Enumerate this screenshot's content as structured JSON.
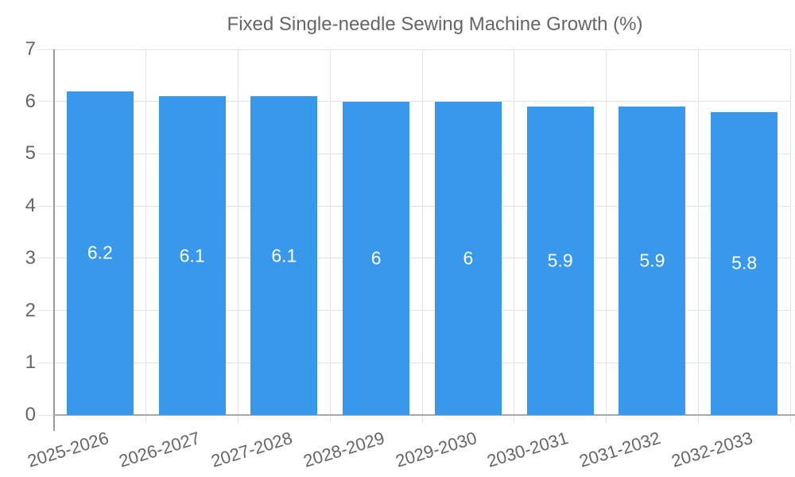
{
  "legend": {
    "label": "Fixed Single-needle Sewing Machine Growth (%)"
  },
  "colors": {
    "bar": "#3899EC",
    "grid": "#e3e3e3",
    "axis_y": "#9a9a9a",
    "axis_x": "#a8a8a8",
    "tick_text": "#666666",
    "value_text": "#ffffff",
    "legend_text": "#666666"
  },
  "chart_data": {
    "type": "bar",
    "title": "Fixed Single-needle Sewing Machine Growth (%)",
    "categories": [
      "2025-2026",
      "2026-2027",
      "2027-2028",
      "2028-2029",
      "2029-2030",
      "2030-2031",
      "2031-2032",
      "2032-2033"
    ],
    "values": [
      6.2,
      6.1,
      6.1,
      6,
      6,
      5.9,
      5.9,
      5.8
    ],
    "value_labels": [
      "6.2",
      "6.1",
      "6.1",
      "6",
      "6",
      "5.9",
      "5.9",
      "5.8"
    ],
    "xlabel": "",
    "ylabel": "",
    "ylim": [
      0,
      7
    ],
    "yticks": [
      0,
      1,
      2,
      3,
      4,
      5,
      6,
      7
    ],
    "grid": true,
    "legend_position": "top",
    "x_label_rotation_deg": -17
  }
}
